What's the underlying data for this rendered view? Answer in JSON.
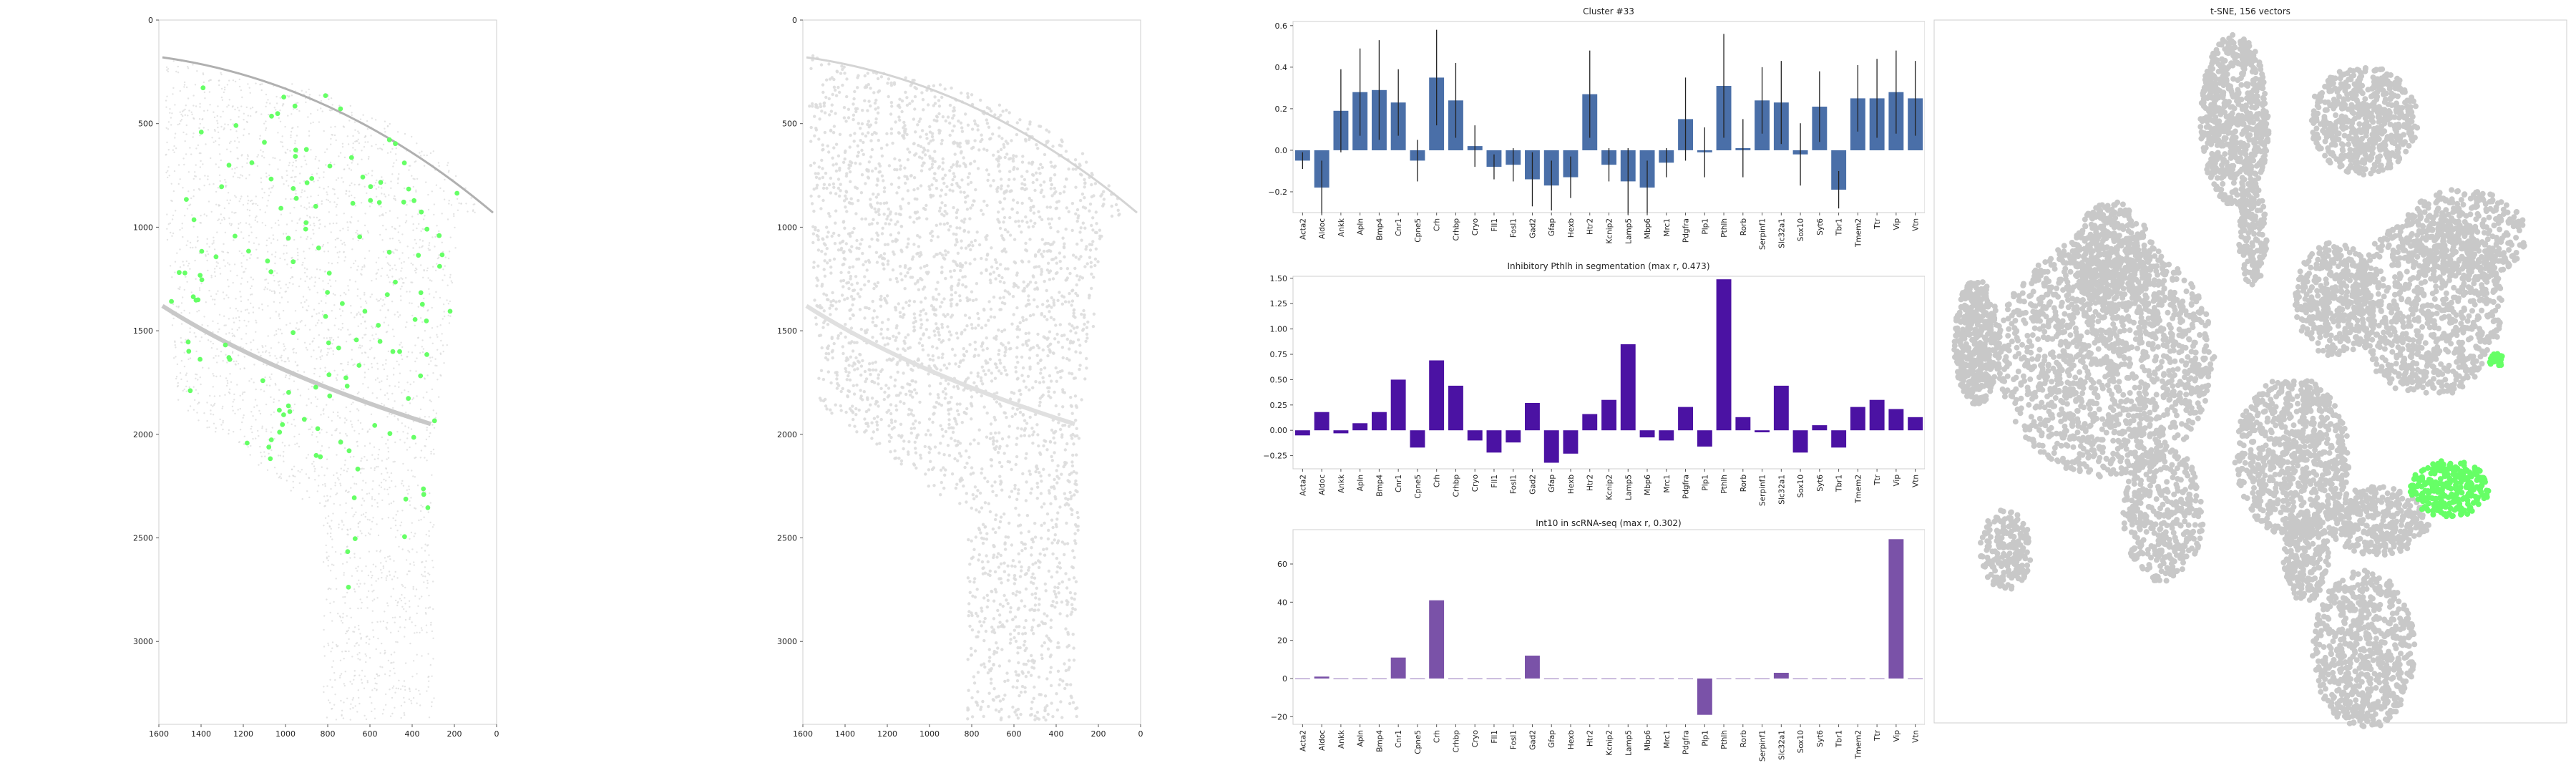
{
  "colors": {
    "highlight": "#66ff66",
    "cell_gray": "#c8c8c8",
    "bar_blue": "#4a6fa8",
    "bar_purple": "#4b12a3",
    "bar_violet": "#7a52a8",
    "axis": "#cfcfcf"
  },
  "images": [
    {
      "name": "spatial-highlight",
      "x_ticks": [
        "1600",
        "1400",
        "1200",
        "1000",
        "800",
        "600",
        "400",
        "200",
        "0"
      ],
      "y_ticks": [
        "0",
        "500",
        "1000",
        "1500",
        "2000",
        "2500",
        "3000"
      ],
      "x_range": [
        1600,
        0
      ],
      "y_range": [
        0,
        3400
      ]
    },
    {
      "name": "spatial-segmentation",
      "x_ticks": [
        "1600",
        "1400",
        "1200",
        "1000",
        "800",
        "600",
        "400",
        "200",
        "0"
      ],
      "y_ticks": [
        "0",
        "500",
        "1000",
        "1500",
        "2000",
        "2500",
        "3000"
      ],
      "x_range": [
        1600,
        0
      ],
      "y_range": [
        0,
        3400
      ]
    }
  ],
  "chart_data": [
    {
      "type": "bar",
      "title": "Cluster #33",
      "xlabel": "",
      "ylabel": "",
      "ylim": [
        -0.3,
        0.62
      ],
      "yticks": [
        -0.2,
        0,
        0.2,
        0.4,
        0.6
      ],
      "ytick_labels": [
        "−0.2",
        "0.0",
        "0.2",
        "0.4",
        "0.6"
      ],
      "categories": [
        "Acta2",
        "Aldoc",
        "Ankk",
        "Apln",
        "Bmp4",
        "Cnr1",
        "Cpne5",
        "Crh",
        "Crhbp",
        "Cryo",
        "Fll1",
        "Fosl1",
        "Gad2",
        "Gfap",
        "Hexb",
        "Htr2",
        "Kcnip2",
        "Lamp5",
        "Mbp6",
        "Mrc1",
        "Pdgfra",
        "Plp1",
        "Pthlh",
        "Rorb",
        "Serpinf1",
        "Slc32a1",
        "Sox10",
        "Syt6",
        "Tbr1",
        "Tmem2",
        "Ttr",
        "Vip",
        "Vtn"
      ],
      "values": [
        -0.05,
        -0.18,
        0.19,
        0.28,
        0.29,
        0.23,
        -0.05,
        0.35,
        0.24,
        0.02,
        -0.08,
        -0.07,
        -0.14,
        -0.17,
        -0.13,
        0.27,
        -0.07,
        -0.15,
        -0.18,
        -0.06,
        0.15,
        -0.01,
        0.31,
        0.01,
        0.24,
        0.23,
        -0.02,
        0.21,
        -0.19,
        0.25,
        0.25,
        0.28,
        0.25
      ],
      "errors": [
        0.04,
        0.13,
        0.2,
        0.21,
        0.24,
        0.16,
        0.1,
        0.23,
        0.18,
        0.1,
        0.06,
        0.08,
        0.13,
        0.12,
        0.1,
        0.21,
        0.08,
        0.16,
        0.13,
        0.07,
        0.2,
        0.12,
        0.25,
        0.14,
        0.16,
        0.2,
        0.15,
        0.17,
        0.09,
        0.16,
        0.19,
        0.2,
        0.18
      ]
    },
    {
      "type": "bar",
      "title": "Inhibitory Pthlh in segmentation (max r, 0.473)",
      "xlabel": "",
      "ylabel": "",
      "ylim": [
        -0.38,
        1.52
      ],
      "yticks": [
        -0.25,
        0,
        0.25,
        0.5,
        0.75,
        1.0,
        1.25,
        1.5
      ],
      "ytick_labels": [
        "−0.25",
        "0.00",
        "0.25",
        "0.50",
        "0.75",
        "1.00",
        "1.25",
        "1.50"
      ],
      "categories": [
        "Acta2",
        "Aldoc",
        "Ankk",
        "Apln",
        "Bmp4",
        "Cnr1",
        "Cpne5",
        "Crh",
        "Crhbp",
        "Cryo",
        "Fll1",
        "Fosl1",
        "Gad2",
        "Gfap",
        "Hexb",
        "Htr2",
        "Kcnip2",
        "Lamp5",
        "Mbp6",
        "Mrc1",
        "Pdgfra",
        "Plp1",
        "Pthlh",
        "Rorb",
        "Serpinf1",
        "Slc32a1",
        "Sox10",
        "Syt6",
        "Tbr1",
        "Tmem2",
        "Ttr",
        "Vip",
        "Vtn"
      ],
      "values": [
        -0.05,
        0.18,
        -0.03,
        0.07,
        0.18,
        0.5,
        -0.17,
        0.69,
        0.44,
        -0.1,
        -0.22,
        -0.12,
        0.27,
        -0.32,
        -0.23,
        0.16,
        0.3,
        0.85,
        -0.07,
        -0.1,
        0.23,
        -0.16,
        1.49,
        0.13,
        -0.02,
        0.44,
        -0.22,
        0.05,
        -0.17,
        0.23,
        0.3,
        0.21,
        0.13
      ]
    },
    {
      "type": "bar",
      "title": "Int10 in scRNA-seq (max r, 0.302)",
      "xlabel": "",
      "ylabel": "",
      "ylim": [
        -24,
        78
      ],
      "yticks": [
        -20,
        0,
        20,
        40,
        60
      ],
      "ytick_labels": [
        "−20",
        "0",
        "20",
        "40",
        "60"
      ],
      "categories": [
        "Acta2",
        "Aldoc",
        "Ankk",
        "Apln",
        "Bmp4",
        "Cnr1",
        "Cpne5",
        "Crh",
        "Crhbp",
        "Cryo",
        "Fll1",
        "Fosl1",
        "Gad2",
        "Gfap",
        "Hexb",
        "Htr2",
        "Kcnip2",
        "Lamp5",
        "Mbp6",
        "Mrc1",
        "Pdgfra",
        "Plp1",
        "Pthlh",
        "Rorb",
        "Serpinf1",
        "Slc32a1",
        "Sox10",
        "Syt6",
        "Tbr1",
        "Tmem2",
        "Ttr",
        "Vip",
        "Vtn"
      ],
      "values": [
        0,
        1,
        0,
        0,
        0,
        11,
        0,
        41,
        0,
        0,
        0,
        0,
        12,
        0,
        0,
        0,
        0,
        0,
        0,
        0,
        0,
        -19,
        0,
        0,
        0,
        3,
        0,
        0,
        0,
        0,
        0,
        73,
        0
      ]
    },
    {
      "type": "scatter",
      "title": "t-SNE, 156 vectors",
      "xlabel": "",
      "ylabel": "",
      "grid": false,
      "legend": "none",
      "highlighted_cluster": "green"
    }
  ]
}
